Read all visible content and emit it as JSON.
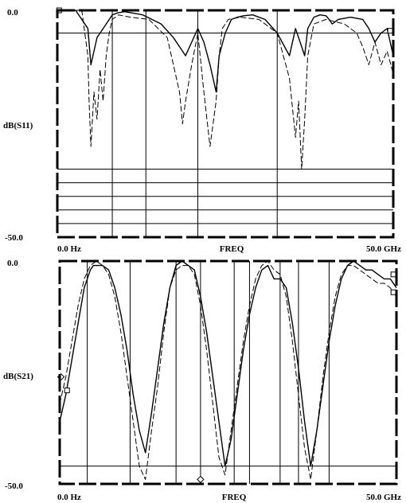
{
  "chart_data": [
    {
      "type": "line",
      "xlabel": "FREQ",
      "ylabel": "dB(S11)",
      "x_tick_labels": [
        "0.0 Hz",
        "50.0 GHz"
      ],
      "y_tick_labels": [
        "0.0",
        "-50.0"
      ],
      "xlim": [
        0,
        55
      ],
      "ylim": [
        -50,
        0
      ],
      "grid": true,
      "series": [
        {
          "style": "solid",
          "x": [
            0,
            3,
            5,
            5.5,
            6.5,
            8,
            9,
            10,
            11,
            12,
            14,
            17,
            19,
            21,
            23,
            24,
            25,
            26,
            26.5,
            27.5,
            28.5,
            29.5,
            30.5,
            32,
            34,
            36,
            38,
            39,
            40,
            40.5,
            41,
            42,
            43,
            44,
            44.5,
            45,
            46,
            48,
            50,
            51,
            52,
            53,
            54,
            55
          ],
          "y": [
            0,
            0,
            -4,
            -12,
            -6,
            -3,
            -1,
            -0.5,
            -0.3,
            -0.5,
            -1,
            -3,
            -6,
            -10,
            -4,
            -7,
            -12,
            -18,
            -10,
            -5,
            -2,
            -1.5,
            -1.2,
            -1,
            -2,
            -5,
            -10,
            -4,
            -8,
            -10,
            -4,
            -1.5,
            -1,
            -1.2,
            -2,
            -3,
            -2,
            -1.5,
            -2,
            -4,
            -7,
            -5,
            -4,
            -10
          ]
        },
        {
          "style": "dashed",
          "x": [
            0,
            4,
            5,
            5.2,
            5.5,
            6,
            6.5,
            7,
            7.5,
            8,
            8.5,
            9,
            10,
            12,
            15,
            18,
            19,
            20,
            20.5,
            21,
            22,
            23,
            24,
            25,
            26,
            26.5,
            27,
            28,
            30,
            33,
            36,
            38,
            39,
            39.5,
            40,
            40.5,
            41,
            42,
            44,
            47,
            49,
            50,
            51,
            52,
            53,
            54,
            55
          ],
          "y": [
            0,
            0,
            -10,
            -20,
            -30,
            -18,
            -24,
            -13,
            -20,
            -10,
            -5,
            -2,
            -1,
            -1.5,
            -2,
            -6,
            -12,
            -18,
            -25,
            -20,
            -12,
            -5,
            -18,
            -30,
            -20,
            -10,
            -4,
            -2,
            -1.5,
            -2,
            -5,
            -15,
            -28,
            -20,
            -35,
            -24,
            -10,
            -3,
            -2,
            -3,
            -5,
            -8,
            -12,
            -7,
            -12,
            -9,
            -14
          ]
        }
      ],
      "markers": [
        {
          "symbol": "square",
          "x": 0.3,
          "y": 0
        },
        {
          "symbol": "square",
          "x": 54.5,
          "y": -4.5
        }
      ],
      "horizontal_lines": [
        -5,
        -35,
        -38,
        -41,
        -44,
        -47
      ],
      "vertical_lines": [
        9,
        14.5,
        23,
        36
      ]
    },
    {
      "type": "line",
      "xlabel": "FREQ",
      "ylabel": "dB(S21)",
      "x_tick_labels": [
        "0.0 Hz",
        "50.0 GHz"
      ],
      "y_tick_labels": [
        "0.0",
        "-50.0"
      ],
      "xlim": [
        0,
        55
      ],
      "ylim": [
        -50,
        0
      ],
      "grid": true,
      "series": [
        {
          "style": "solid",
          "x": [
            0,
            1,
            2,
            3,
            4,
            5,
            5.5,
            6,
            7,
            8,
            9,
            10,
            11,
            12,
            13,
            14,
            15,
            16,
            17,
            18,
            19,
            20,
            21,
            22,
            23,
            24,
            25,
            26,
            27,
            28,
            29,
            30,
            31,
            32,
            33,
            34,
            35,
            36,
            37,
            38,
            39,
            40,
            41,
            42,
            43,
            44,
            45,
            46,
            47,
            48,
            49,
            50,
            51,
            52,
            53,
            54,
            55
          ],
          "y": [
            -36,
            -30,
            -22,
            -14,
            -6,
            -2,
            -1,
            -1,
            -1,
            -2,
            -6,
            -12,
            -20,
            -30,
            -38,
            -43,
            -34,
            -24,
            -14,
            -6,
            -1,
            0,
            -1,
            -2,
            -8,
            -16,
            -26,
            -36,
            -46,
            -40,
            -30,
            -20,
            -12,
            -6,
            -2,
            -1,
            -4,
            -4,
            -6,
            -14,
            -24,
            -36,
            -46,
            -38,
            -28,
            -18,
            -10,
            -4,
            -1,
            0,
            -1,
            -2,
            -2,
            -3,
            -4,
            -4,
            -6
          ]
        },
        {
          "style": "dashed",
          "x": [
            0,
            1,
            2,
            3,
            4,
            5,
            6,
            7,
            8,
            9,
            10,
            11,
            12,
            13,
            14,
            15,
            16,
            17,
            18,
            19,
            20,
            21,
            22,
            23,
            24,
            25,
            26,
            27,
            28,
            29,
            30,
            31,
            32,
            33,
            34,
            35,
            36,
            37,
            38,
            39,
            40,
            41,
            42,
            43,
            44,
            45,
            46,
            47,
            48,
            49,
            50,
            51,
            52,
            53,
            54,
            55
          ],
          "y": [
            -32,
            -26,
            -18,
            -10,
            -4,
            -1,
            0,
            -1,
            -3,
            -8,
            -16,
            -26,
            -36,
            -46,
            -49,
            -38,
            -28,
            -16,
            -6,
            -2,
            -1,
            -1,
            -3,
            -10,
            -20,
            -32,
            -44,
            -48,
            -38,
            -28,
            -18,
            -10,
            -4,
            -1,
            0,
            -2,
            -3,
            -8,
            -18,
            -30,
            -42,
            -49,
            -38,
            -26,
            -16,
            -8,
            -3,
            -1,
            -1,
            -2,
            -3,
            -4,
            -5,
            -5,
            -6,
            -8
          ]
        }
      ],
      "markers": [
        {
          "symbol": "diamond",
          "x": 0.2,
          "y": -26
        },
        {
          "symbol": "square",
          "x": 1.2,
          "y": -29
        },
        {
          "symbol": "diamond",
          "x": 23,
          "y": -49
        },
        {
          "symbol": "square",
          "x": 54.5,
          "y": -3
        },
        {
          "symbol": "square",
          "x": 54.5,
          "y": -7
        }
      ],
      "horizontal_lines": [
        -46
      ],
      "vertical_lines": [
        4.5,
        11.5,
        19,
        23,
        28.5,
        31,
        36,
        39,
        44
      ]
    }
  ]
}
